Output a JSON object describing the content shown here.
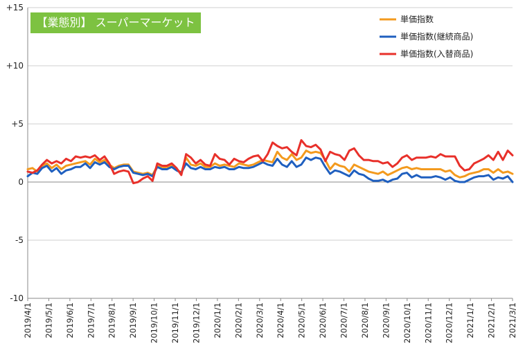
{
  "chart_data": {
    "type": "line",
    "title": "【業態別】 スーパーマーケット",
    "xlabel": "",
    "ylabel": "",
    "ylim": [
      -10,
      15
    ],
    "yticks": [
      -10,
      -5,
      0,
      5,
      10,
      15
    ],
    "ytick_labels": [
      "-10",
      "-5",
      "0",
      "+5",
      "+10",
      "+15"
    ],
    "grid": "horizontal",
    "legend_position": "top-right",
    "x_start": "2019/4/1",
    "x_end": "2021/3/1",
    "xtick_labels": [
      "2019/4/1",
      "2019/5/1",
      "2019/6/1",
      "2019/7/1",
      "2019/8/1",
      "2019/9/1",
      "2019/10/1",
      "2019/11/1",
      "2019/12/1",
      "2020/1/1",
      "2020/2/1",
      "2020/3/1",
      "2020/4/1",
      "2020/5/1",
      "2020/6/1",
      "2020/7/1",
      "2020/8/1",
      "2020/9/1",
      "2020/10/1",
      "2020/11/1",
      "2020/12/1",
      "2021/1/1",
      "2021/2/1",
      "2021/3/1"
    ],
    "series": [
      {
        "name": "単価指数",
        "color": "#f39a1e",
        "values": [
          1.1,
          1.2,
          0.9,
          1.4,
          1.6,
          1.2,
          1.5,
          1.1,
          1.4,
          1.5,
          1.6,
          1.7,
          1.8,
          1.5,
          2.0,
          1.7,
          1.9,
          1.5,
          1.2,
          1.4,
          1.5,
          1.5,
          0.9,
          0.8,
          0.7,
          0.8,
          0.6,
          1.4,
          1.2,
          1.3,
          1.4,
          1.1,
          0.8,
          2.1,
          1.5,
          1.4,
          1.6,
          1.3,
          1.3,
          1.6,
          1.4,
          1.5,
          1.4,
          1.3,
          1.6,
          1.5,
          1.4,
          1.5,
          1.7,
          1.9,
          1.8,
          1.7,
          2.6,
          2.1,
          1.9,
          2.4,
          1.9,
          2.1,
          2.7,
          2.5,
          2.6,
          2.5,
          1.9,
          1.1,
          1.6,
          1.4,
          1.3,
          0.9,
          1.5,
          1.3,
          1.1,
          0.9,
          0.8,
          0.7,
          0.9,
          0.6,
          0.8,
          1.0,
          1.2,
          1.3,
          1.1,
          1.2,
          1.1,
          1.1,
          1.1,
          1.1,
          1.1,
          0.9,
          1.0,
          0.6,
          0.4,
          0.5,
          0.7,
          0.8,
          0.9,
          1.1,
          1.1,
          0.8,
          1.1,
          0.8,
          0.9,
          0.7
        ]
      },
      {
        "name": "単価指数(継続商品)",
        "color": "#1f5fbf",
        "values": [
          0.5,
          0.8,
          0.7,
          1.2,
          1.4,
          0.9,
          1.2,
          0.7,
          1.0,
          1.1,
          1.3,
          1.3,
          1.6,
          1.2,
          1.7,
          1.5,
          1.7,
          1.3,
          1.1,
          1.3,
          1.4,
          1.4,
          0.8,
          0.7,
          0.6,
          0.7,
          0.5,
          1.3,
          1.1,
          1.1,
          1.3,
          1.0,
          0.8,
          1.6,
          1.2,
          1.1,
          1.3,
          1.1,
          1.1,
          1.3,
          1.2,
          1.3,
          1.1,
          1.1,
          1.3,
          1.2,
          1.2,
          1.3,
          1.5,
          1.7,
          1.5,
          1.4,
          2.0,
          1.5,
          1.3,
          1.8,
          1.3,
          1.5,
          2.1,
          1.9,
          2.1,
          2.0,
          1.3,
          0.7,
          1.0,
          0.9,
          0.7,
          0.5,
          1.0,
          0.7,
          0.6,
          0.3,
          0.1,
          0.1,
          0.2,
          0.0,
          0.2,
          0.3,
          0.7,
          0.8,
          0.4,
          0.6,
          0.4,
          0.4,
          0.4,
          0.5,
          0.4,
          0.2,
          0.4,
          0.1,
          0.0,
          0.0,
          0.2,
          0.4,
          0.5,
          0.5,
          0.6,
          0.2,
          0.4,
          0.3,
          0.5,
          0.0
        ]
      },
      {
        "name": "単価指数(入替商品)",
        "color": "#e8302a",
        "values": [
          0.9,
          0.8,
          1.0,
          1.5,
          1.9,
          1.6,
          1.8,
          1.6,
          2.0,
          1.8,
          2.2,
          2.1,
          2.2,
          2.1,
          2.3,
          1.9,
          2.2,
          1.6,
          0.7,
          0.9,
          1.0,
          0.9,
          -0.1,
          0.0,
          0.3,
          0.5,
          0.1,
          1.6,
          1.4,
          1.4,
          1.6,
          1.2,
          0.6,
          2.4,
          2.1,
          1.6,
          1.9,
          1.5,
          1.4,
          2.4,
          2.0,
          1.9,
          1.5,
          2.0,
          1.8,
          1.7,
          2.0,
          2.2,
          2.3,
          1.8,
          2.4,
          3.4,
          3.1,
          2.9,
          3.0,
          2.6,
          2.3,
          3.6,
          3.1,
          3.0,
          3.2,
          2.8,
          1.8,
          2.6,
          2.4,
          2.3,
          1.9,
          2.7,
          2.9,
          2.3,
          1.9,
          1.9,
          1.8,
          1.8,
          1.6,
          1.7,
          1.3,
          1.6,
          2.1,
          2.3,
          1.9,
          2.1,
          2.1,
          2.1,
          2.2,
          2.1,
          2.4,
          2.2,
          2.2,
          2.2,
          1.4,
          1.0,
          1.1,
          1.6,
          1.8,
          2.0,
          2.3,
          1.9,
          2.6,
          1.9,
          2.7,
          2.3
        ]
      }
    ]
  }
}
